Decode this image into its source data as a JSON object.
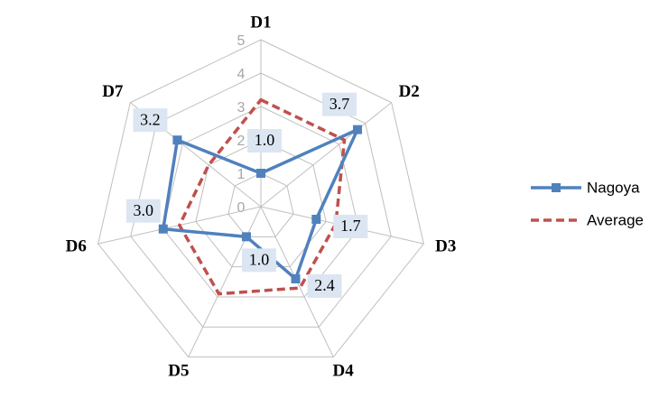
{
  "chart_data": {
    "type": "radar",
    "categories": [
      "D1",
      "D2",
      "D3",
      "D4",
      "D5",
      "D6",
      "D7"
    ],
    "rlim": [
      0,
      5
    ],
    "rticks": [
      0,
      1,
      2,
      3,
      4,
      5
    ],
    "grid": true,
    "legend": "right",
    "series": [
      {
        "name": "Nagoya",
        "color": "#4f81bd",
        "marker": "square",
        "dashed": false,
        "values": [
          1.0,
          3.7,
          1.7,
          2.4,
          1.0,
          3.0,
          3.2
        ],
        "value_labels": [
          "1.0",
          "3.7",
          "1.7",
          "2.4",
          "1.0",
          "3.0",
          "3.2"
        ]
      },
      {
        "name": "Average",
        "color": "#c0504d",
        "marker": "none",
        "dashed": true,
        "values": [
          3.2,
          3.2,
          2.3,
          2.7,
          2.9,
          2.5,
          2.0
        ]
      }
    ]
  }
}
